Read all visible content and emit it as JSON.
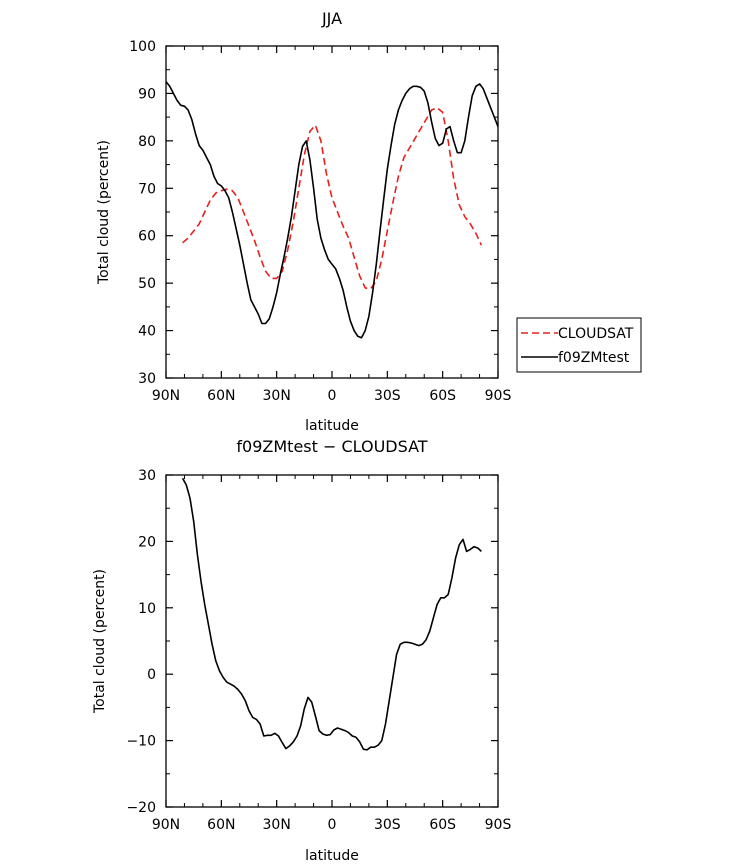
{
  "chart_data": [
    {
      "type": "line",
      "title": "JJA",
      "xlabel": "latitude",
      "ylabel": "Total cloud (percent)",
      "xlim": [
        90,
        -90
      ],
      "ylim": [
        30,
        100
      ],
      "x_ticks": [
        90,
        60,
        30,
        0,
        -30,
        -60,
        -90
      ],
      "x_tick_labels": [
        "90N",
        "60N",
        "30N",
        "0",
        "30S",
        "60S",
        "90S"
      ],
      "y_ticks": [
        30,
        40,
        50,
        60,
        70,
        80,
        90,
        100
      ],
      "y_tick_labels": [
        "30",
        "40",
        "50",
        "60",
        "70",
        "80",
        "90",
        "100"
      ],
      "legend_position": "right",
      "series": [
        {
          "name": "CLOUDSAT",
          "color": "#e8201c",
          "dash": "dashed",
          "x": [
            81,
            78,
            75,
            72,
            69,
            66,
            63,
            60,
            57,
            54,
            51,
            48,
            45,
            42,
            39,
            36,
            33,
            30,
            27,
            24,
            21,
            18,
            15,
            12,
            9,
            6,
            3,
            0,
            -3,
            -6,
            -9,
            -12,
            -15,
            -18,
            -21,
            -24,
            -27,
            -30,
            -33,
            -36,
            -39,
            -42,
            -45,
            -48,
            -51,
            -54,
            -57,
            -60,
            -63,
            -66,
            -69,
            -72,
            -75,
            -78,
            -81
          ],
          "y": [
            58.5,
            59.5,
            61,
            62.5,
            65,
            67.5,
            69,
            69.5,
            69.8,
            69.5,
            68,
            65,
            62,
            59,
            55.5,
            52.5,
            51,
            51,
            52.5,
            57,
            63,
            70,
            77,
            82,
            83.3,
            80,
            73,
            68,
            65,
            62,
            59.5,
            55.5,
            51.5,
            49,
            48.8,
            50.5,
            55,
            61,
            67,
            72.5,
            76.5,
            78.5,
            80.5,
            82.5,
            84.5,
            86.5,
            87,
            86,
            80,
            72,
            66.5,
            64,
            62.5,
            60.5,
            58
          ]
        },
        {
          "name": "f09ZMtest",
          "color": "#000000",
          "dash": "solid",
          "x": [
            90,
            88,
            86,
            84,
            82,
            80,
            78,
            76,
            74,
            72,
            70,
            68,
            66,
            64,
            62,
            60,
            58,
            56,
            54,
            52,
            50,
            48,
            46,
            44,
            42,
            40,
            38,
            36,
            34,
            32,
            30,
            28,
            26,
            24,
            22,
            20,
            18,
            16,
            14,
            12,
            10,
            8,
            6,
            4,
            2,
            0,
            -2,
            -4,
            -6,
            -8,
            -10,
            -12,
            -14,
            -16,
            -18,
            -20,
            -22,
            -24,
            -26,
            -28,
            -30,
            -32,
            -34,
            -36,
            -38,
            -40,
            -42,
            -44,
            -46,
            -48,
            -50,
            -52,
            -54,
            -56,
            -58,
            -60,
            -62,
            -64,
            -66,
            -68,
            -70,
            -72,
            -74,
            -76,
            -78,
            -80,
            -82,
            -84,
            -86,
            -88,
            -90
          ],
          "y": [
            92.5,
            91.5,
            90,
            88.5,
            87.5,
            87.3,
            86.5,
            84.5,
            81.5,
            79,
            78,
            76.5,
            75,
            72.5,
            71,
            70.5,
            69.5,
            68,
            65,
            61.5,
            58,
            54,
            50,
            46.5,
            45,
            43.5,
            41.5,
            41.5,
            42.5,
            45,
            48,
            52,
            55.5,
            59.5,
            64,
            69.5,
            75,
            78.8,
            80,
            76,
            70,
            63.5,
            59.5,
            57,
            55,
            54,
            53,
            51,
            48.5,
            45,
            42,
            40,
            38.8,
            38.5,
            40,
            43,
            48,
            54,
            61,
            67.5,
            74,
            79,
            83.5,
            86.5,
            88.5,
            90,
            91,
            91.5,
            91.5,
            91.3,
            90.5,
            88,
            84,
            80.5,
            79,
            79.5,
            82.5,
            83,
            80,
            77.5,
            77.5,
            80,
            85,
            89.5,
            91.5,
            92,
            91,
            89,
            87,
            85,
            83
          ]
        }
      ]
    },
    {
      "type": "line",
      "title": "f09ZMtest − CLOUDSAT",
      "xlabel": "latitude",
      "ylabel": "Total cloud (percent)",
      "xlim": [
        90,
        -90
      ],
      "ylim": [
        -20,
        30
      ],
      "x_ticks": [
        90,
        60,
        30,
        0,
        -30,
        -60,
        -90
      ],
      "x_tick_labels": [
        "90N",
        "60N",
        "30N",
        "0",
        "30S",
        "60S",
        "90S"
      ],
      "y_ticks": [
        -20,
        -10,
        0,
        10,
        20,
        30
      ],
      "y_tick_labels": [
        "−20",
        "−10",
        "0",
        "10",
        "20",
        "30"
      ],
      "series": [
        {
          "name": "",
          "color": "#000000",
          "dash": "solid",
          "x": [
            81,
            79,
            77,
            75,
            73,
            71,
            69,
            67,
            65,
            63,
            61,
            59,
            57,
            55,
            53,
            51,
            49,
            47,
            45,
            43,
            41,
            39,
            37,
            35,
            33,
            31,
            29,
            27,
            25,
            23,
            21,
            19,
            17,
            15,
            13,
            11,
            9,
            7,
            5,
            3,
            1,
            -1,
            -3,
            -5,
            -7,
            -9,
            -11,
            -13,
            -15,
            -17,
            -19,
            -21,
            -23,
            -25,
            -27,
            -29,
            -31,
            -33,
            -35,
            -37,
            -39,
            -41,
            -43,
            -45,
            -47,
            -49,
            -51,
            -53,
            -55,
            -57,
            -59,
            -61,
            -63,
            -65,
            -67,
            -69,
            -71,
            -73,
            -75,
            -77,
            -79,
            -81
          ],
          "y": [
            29.5,
            28.5,
            26.5,
            23,
            18,
            14,
            10.5,
            7.5,
            4.5,
            2,
            0.5,
            -0.5,
            -1.2,
            -1.5,
            -1.8,
            -2.3,
            -3,
            -4,
            -5.5,
            -6.5,
            -6.8,
            -7.5,
            -9.3,
            -9.2,
            -9.2,
            -8.9,
            -9.3,
            -10.3,
            -11.2,
            -10.8,
            -10.2,
            -9.3,
            -7.8,
            -5.2,
            -3.5,
            -4.2,
            -6.3,
            -8.5,
            -9,
            -9.2,
            -9.1,
            -8.4,
            -8.1,
            -8.3,
            -8.5,
            -8.8,
            -9.3,
            -9.5,
            -10.2,
            -11.3,
            -11.4,
            -11,
            -11,
            -10.7,
            -10,
            -7.5,
            -4,
            -0.5,
            3,
            4.5,
            4.8,
            4.8,
            4.7,
            4.5,
            4.3,
            4.5,
            5.2,
            6.5,
            8.5,
            10.5,
            11.5,
            11.5,
            12,
            14.5,
            17.5,
            19.5,
            20.3,
            18.5,
            18.8,
            19.2,
            19,
            18.5
          ]
        }
      ]
    }
  ]
}
